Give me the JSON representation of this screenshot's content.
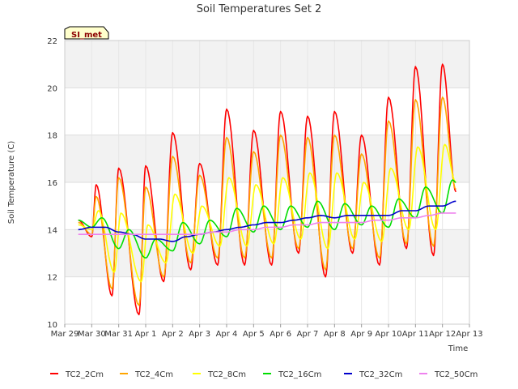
{
  "chart_data": {
    "type": "line",
    "title": "Soil Temperatures Set 2",
    "xlabel": "Time",
    "ylabel": "Soil Temperature (C)",
    "ylim": [
      10,
      22
    ],
    "yticks": [
      10,
      12,
      14,
      16,
      18,
      20,
      22
    ],
    "xlim": [
      "2023-03-29",
      "2023-04-13"
    ],
    "xticks": [
      "Mar 29",
      "Mar 30",
      "Mar 31",
      "Apr 1",
      "Apr 2",
      "Apr 3",
      "Apr 4",
      "Apr 5",
      "Apr 6",
      "Apr 7",
      "Apr 8",
      "Apr 9",
      "Apr 10",
      "Apr 11",
      "Apr 12",
      "Apr 13"
    ],
    "grid": true,
    "background_bands": true,
    "legend_position": "bottom",
    "badge": "SI_met",
    "series": [
      {
        "name": "TC2_2Cm",
        "color": "#ff0000",
        "points": [
          [
            "Mar 29 12:00",
            14.4
          ],
          [
            "Mar 30 00:00",
            13.7
          ],
          [
            "Mar 30 04:00",
            15.9
          ],
          [
            "Mar 30 18:00",
            11.2
          ],
          [
            "Mar 31 00:00",
            16.6
          ],
          [
            "Mar 31 18:00",
            10.4
          ],
          [
            "Apr 1 00:00",
            16.7
          ],
          [
            "Apr 1 16:00",
            11.8
          ],
          [
            "Apr 2 00:00",
            18.1
          ],
          [
            "Apr 2 16:00",
            12.3
          ],
          [
            "Apr 3 00:00",
            16.8
          ],
          [
            "Apr 3 16:00",
            12.5
          ],
          [
            "Apr 4 00:00",
            19.1
          ],
          [
            "Apr 4 16:00",
            12.5
          ],
          [
            "Apr 5 00:00",
            18.2
          ],
          [
            "Apr 5 16:00",
            12.5
          ],
          [
            "Apr 6 00:00",
            19.0
          ],
          [
            "Apr 6 16:00",
            13.0
          ],
          [
            "Apr 7 00:00",
            18.8
          ],
          [
            "Apr 7 16:00",
            12.0
          ],
          [
            "Apr 8 00:00",
            19.0
          ],
          [
            "Apr 8 16:00",
            13.0
          ],
          [
            "Apr 9 00:00",
            18.0
          ],
          [
            "Apr 9 16:00",
            12.5
          ],
          [
            "Apr 10 00:00",
            19.6
          ],
          [
            "Apr 10 16:00",
            13.2
          ],
          [
            "Apr 11 00:00",
            20.9
          ],
          [
            "Apr 11 16:00",
            12.9
          ],
          [
            "Apr 12 00:00",
            21.0
          ],
          [
            "Apr 12 12:00",
            15.6
          ]
        ]
      },
      {
        "name": "TC2_4Cm",
        "color": "#ffa500",
        "points": [
          [
            "Mar 29 12:00",
            14.3
          ],
          [
            "Mar 30 00:00",
            13.8
          ],
          [
            "Mar 30 04:00",
            15.4
          ],
          [
            "Mar 30 18:00",
            11.5
          ],
          [
            "Mar 31 00:00",
            16.2
          ],
          [
            "Mar 31 18:00",
            10.8
          ],
          [
            "Apr 1 00:00",
            15.8
          ],
          [
            "Apr 1 16:00",
            12.0
          ],
          [
            "Apr 2 00:00",
            17.1
          ],
          [
            "Apr 2 16:00",
            12.6
          ],
          [
            "Apr 3 00:00",
            16.3
          ],
          [
            "Apr 3 16:00",
            12.8
          ],
          [
            "Apr 4 00:00",
            17.9
          ],
          [
            "Apr 4 16:00",
            12.8
          ],
          [
            "Apr 5 00:00",
            17.3
          ],
          [
            "Apr 5 16:00",
            12.8
          ],
          [
            "Apr 6 00:00",
            18.0
          ],
          [
            "Apr 6 16:00",
            13.2
          ],
          [
            "Apr 7 00:00",
            17.9
          ],
          [
            "Apr 7 16:00",
            12.3
          ],
          [
            "Apr 8 00:00",
            18.0
          ],
          [
            "Apr 8 16:00",
            13.2
          ],
          [
            "Apr 9 00:00",
            17.2
          ],
          [
            "Apr 9 16:00",
            12.8
          ],
          [
            "Apr 10 00:00",
            18.6
          ],
          [
            "Apr 10 16:00",
            13.4
          ],
          [
            "Apr 11 00:00",
            19.5
          ],
          [
            "Apr 11 16:00",
            13.3
          ],
          [
            "Apr 12 00:00",
            19.6
          ],
          [
            "Apr 12 12:00",
            15.7
          ]
        ]
      },
      {
        "name": "TC2_8Cm",
        "color": "#ffff00",
        "points": [
          [
            "Mar 29 12:00",
            14.2
          ],
          [
            "Mar 30 00:00",
            14.0
          ],
          [
            "Mar 30 06:00",
            14.8
          ],
          [
            "Mar 30 20:00",
            12.2
          ],
          [
            "Mar 31 02:00",
            14.7
          ],
          [
            "Mar 31 20:00",
            11.8
          ],
          [
            "Apr 1 02:00",
            14.2
          ],
          [
            "Apr 1 18:00",
            12.6
          ],
          [
            "Apr 2 02:00",
            15.5
          ],
          [
            "Apr 2 18:00",
            13.0
          ],
          [
            "Apr 3 02:00",
            15.0
          ],
          [
            "Apr 3 18:00",
            13.3
          ],
          [
            "Apr 4 02:00",
            16.2
          ],
          [
            "Apr 4 18:00",
            13.3
          ],
          [
            "Apr 5 02:00",
            15.9
          ],
          [
            "Apr 5 18:00",
            13.4
          ],
          [
            "Apr 6 02:00",
            16.2
          ],
          [
            "Apr 6 18:00",
            13.6
          ],
          [
            "Apr 7 02:00",
            16.4
          ],
          [
            "Apr 7 18:00",
            13.2
          ],
          [
            "Apr 8 02:00",
            16.4
          ],
          [
            "Apr 8 18:00",
            13.6
          ],
          [
            "Apr 9 02:00",
            16.0
          ],
          [
            "Apr 9 18:00",
            13.5
          ],
          [
            "Apr 10 02:00",
            16.6
          ],
          [
            "Apr 10 18:00",
            14.0
          ],
          [
            "Apr 11 02:00",
            17.5
          ],
          [
            "Apr 11 18:00",
            14.0
          ],
          [
            "Apr 12 02:00",
            17.6
          ],
          [
            "Apr 12 12:00",
            16.0
          ]
        ]
      },
      {
        "name": "TC2_16Cm",
        "color": "#00dd00",
        "points": [
          [
            "Mar 29 12:00",
            14.4
          ],
          [
            "Mar 30 00:00",
            14.1
          ],
          [
            "Mar 30 09:00",
            14.5
          ],
          [
            "Mar 31 00:00",
            13.2
          ],
          [
            "Mar 31 09:00",
            14.0
          ],
          [
            "Apr 1 00:00",
            12.8
          ],
          [
            "Apr 1 09:00",
            13.6
          ],
          [
            "Apr 2 00:00",
            13.1
          ],
          [
            "Apr 2 09:00",
            14.3
          ],
          [
            "Apr 3 00:00",
            13.4
          ],
          [
            "Apr 3 09:00",
            14.4
          ],
          [
            "Apr 4 00:00",
            13.7
          ],
          [
            "Apr 4 09:00",
            14.9
          ],
          [
            "Apr 5 00:00",
            13.9
          ],
          [
            "Apr 5 09:00",
            15.0
          ],
          [
            "Apr 6 00:00",
            14.0
          ],
          [
            "Apr 6 09:00",
            15.0
          ],
          [
            "Apr 7 00:00",
            14.1
          ],
          [
            "Apr 7 09:00",
            15.2
          ],
          [
            "Apr 8 00:00",
            14.0
          ],
          [
            "Apr 8 09:00",
            15.1
          ],
          [
            "Apr 9 00:00",
            14.2
          ],
          [
            "Apr 9 09:00",
            15.0
          ],
          [
            "Apr 10 00:00",
            14.1
          ],
          [
            "Apr 10 09:00",
            15.3
          ],
          [
            "Apr 11 00:00",
            14.5
          ],
          [
            "Apr 11 09:00",
            15.8
          ],
          [
            "Apr 12 00:00",
            14.7
          ],
          [
            "Apr 12 09:00",
            16.1
          ],
          [
            "Apr 12 12:00",
            16.0
          ]
        ]
      },
      {
        "name": "TC2_32Cm",
        "color": "#0000cc",
        "points": [
          [
            "Mar 29 12:00",
            14.0
          ],
          [
            "Mar 30 00:00",
            14.1
          ],
          [
            "Mar 30 12:00",
            14.1
          ],
          [
            "Mar 31 00:00",
            13.9
          ],
          [
            "Mar 31 12:00",
            13.8
          ],
          [
            "Apr 1 00:00",
            13.6
          ],
          [
            "Apr 1 12:00",
            13.6
          ],
          [
            "Apr 2 00:00",
            13.5
          ],
          [
            "Apr 2 12:00",
            13.7
          ],
          [
            "Apr 3 00:00",
            13.8
          ],
          [
            "Apr 3 12:00",
            13.9
          ],
          [
            "Apr 4 00:00",
            14.0
          ],
          [
            "Apr 4 12:00",
            14.1
          ],
          [
            "Apr 5 00:00",
            14.2
          ],
          [
            "Apr 5 12:00",
            14.3
          ],
          [
            "Apr 6 00:00",
            14.3
          ],
          [
            "Apr 6 12:00",
            14.4
          ],
          [
            "Apr 7 00:00",
            14.5
          ],
          [
            "Apr 7 12:00",
            14.6
          ],
          [
            "Apr 8 00:00",
            14.5
          ],
          [
            "Apr 8 12:00",
            14.6
          ],
          [
            "Apr 9 00:00",
            14.6
          ],
          [
            "Apr 9 12:00",
            14.6
          ],
          [
            "Apr 10 00:00",
            14.6
          ],
          [
            "Apr 10 12:00",
            14.8
          ],
          [
            "Apr 11 00:00",
            14.8
          ],
          [
            "Apr 11 12:00",
            15.0
          ],
          [
            "Apr 12 00:00",
            15.0
          ],
          [
            "Apr 12 12:00",
            15.2
          ]
        ]
      },
      {
        "name": "TC2_50Cm",
        "color": "#ee82ee",
        "points": [
          [
            "Mar 29 12:00",
            13.8
          ],
          [
            "Mar 30 00:00",
            13.8
          ],
          [
            "Mar 30 12:00",
            13.8
          ],
          [
            "Mar 31 00:00",
            13.8
          ],
          [
            "Mar 31 12:00",
            13.8
          ],
          [
            "Apr 1 00:00",
            13.8
          ],
          [
            "Apr 1 12:00",
            13.8
          ],
          [
            "Apr 2 00:00",
            13.8
          ],
          [
            "Apr 2 12:00",
            13.8
          ],
          [
            "Apr 3 00:00",
            13.8
          ],
          [
            "Apr 3 12:00",
            13.9
          ],
          [
            "Apr 4 00:00",
            13.9
          ],
          [
            "Apr 4 12:00",
            14.0
          ],
          [
            "Apr 5 00:00",
            14.0
          ],
          [
            "Apr 5 12:00",
            14.1
          ],
          [
            "Apr 6 00:00",
            14.1
          ],
          [
            "Apr 6 12:00",
            14.2
          ],
          [
            "Apr 7 00:00",
            14.2
          ],
          [
            "Apr 7 12:00",
            14.3
          ],
          [
            "Apr 8 00:00",
            14.3
          ],
          [
            "Apr 8 12:00",
            14.3
          ],
          [
            "Apr 9 00:00",
            14.3
          ],
          [
            "Apr 9 12:00",
            14.4
          ],
          [
            "Apr 10 00:00",
            14.4
          ],
          [
            "Apr 10 12:00",
            14.5
          ],
          [
            "Apr 11 00:00",
            14.5
          ],
          [
            "Apr 11 12:00",
            14.6
          ],
          [
            "Apr 12 00:00",
            14.7
          ],
          [
            "Apr 12 12:00",
            14.7
          ]
        ]
      }
    ]
  }
}
